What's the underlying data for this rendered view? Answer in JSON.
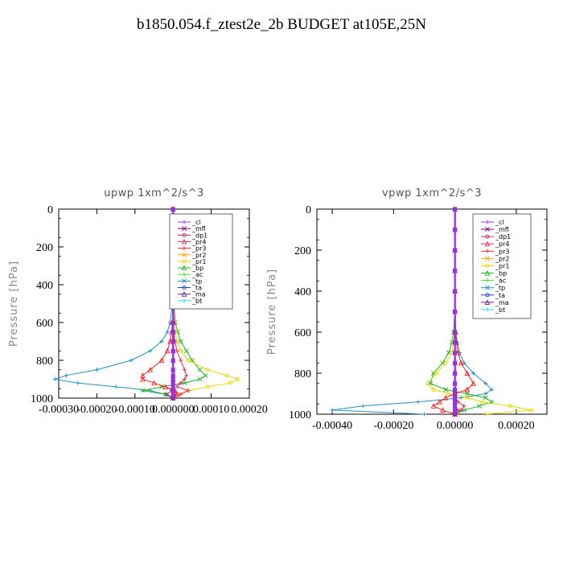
{
  "page": {
    "title": "b1850.054.f_ztest2e_2b  BUDGET at105E,25N"
  },
  "legend_entries": [
    "_cl",
    "_mfl",
    "_dp1",
    "_pr4",
    "_pr3",
    "_pr2",
    "_pr1",
    "_bp",
    "_ac",
    "_tp",
    "_ta",
    "_ma",
    "_bt"
  ],
  "series_colors": {
    "_cl": "#9b30ff",
    "_mfl": "#800080",
    "_dp1": "#b03060",
    "_pr4": "#e0305a",
    "_pr3": "#ff2020",
    "_pr2": "#ffa500",
    "_pr1": "#e8d800",
    "_bp": "#20b020",
    "_ac": "#40e040",
    "_tp": "#2090c0",
    "_ta": "#1040e0",
    "_ma": "#6a2090",
    "_bt": "#20e0e0"
  },
  "chart_data": [
    {
      "type": "line",
      "title": "upwp   1xm^2/s^3",
      "ylabel": "Pressure [hPa]",
      "xlabel": "",
      "xlim": [
        -0.0003,
        0.0002
      ],
      "ylim": [
        1000,
        0
      ],
      "x_tick_labels": [
        "-0.00030",
        "-0.00020",
        "-0.00010",
        "0.000000",
        "0.00010",
        "0.00020"
      ],
      "x_tick_values": [
        -0.0003,
        -0.0002,
        -0.0001,
        0,
        0.0001,
        0.0002
      ],
      "y_tick_values": [
        0,
        200,
        400,
        600,
        800,
        1000
      ],
      "legend": "top-right",
      "levels": [
        0,
        100,
        200,
        300,
        400,
        500,
        600,
        650,
        700,
        750,
        800,
        850,
        880,
        900,
        920,
        940,
        960,
        980,
        1000
      ],
      "series": [
        {
          "name": "_tp",
          "values": [
            0,
            0,
            0,
            0,
            0,
            -2e-06,
            -8e-06,
            -1.5e-05,
            -3e-05,
            -6e-05,
            -0.00011,
            -0.0002,
            -0.00028,
            -0.00031,
            -0.00025,
            -0.00015,
            -6e-05,
            -2e-05,
            0
          ]
        },
        {
          "name": "_bp",
          "values": [
            0,
            0,
            0,
            0,
            1e-06,
            2e-06,
            6e-06,
            1.2e-05,
            2e-05,
            3.5e-05,
            5e-05,
            7e-05,
            8.5e-05,
            7e-05,
            3e-05,
            -3e-05,
            -8e-05,
            -2e-05,
            0
          ]
        },
        {
          "name": "_pr1",
          "values": [
            0,
            0,
            0,
            0,
            0,
            1e-06,
            3e-06,
            6e-06,
            1e-05,
            2e-05,
            4e-05,
            9e-05,
            0.00014,
            0.00017,
            0.00015,
            9e-05,
            4e-05,
            1e-05,
            0
          ]
        },
        {
          "name": "_pr3",
          "values": [
            0,
            0,
            0,
            0,
            0,
            0,
            -2e-06,
            -4e-06,
            -8e-06,
            -1.5e-05,
            -3e-05,
            -6e-05,
            -8e-05,
            -8e-05,
            -5e-05,
            -2e-05,
            5e-06,
            1e-05,
            0
          ]
        },
        {
          "name": "_pr4",
          "values": [
            0,
            0,
            0,
            0,
            0,
            0,
            1e-06,
            2e-06,
            5e-06,
            1e-05,
            2e-05,
            3e-05,
            3.5e-05,
            3e-05,
            2e-05,
            1e-05,
            4e-05,
            2e-05,
            0
          ]
        },
        {
          "name": "_dp1",
          "values": [
            0,
            0,
            0,
            0,
            0,
            0,
            0,
            0,
            0,
            0,
            0,
            0,
            0,
            0,
            0,
            0,
            -5e-06,
            -1.5e-05,
            0
          ]
        },
        {
          "name": "_mfl",
          "values": [
            0,
            0,
            0,
            0,
            0,
            0,
            0,
            0,
            0,
            0,
            0,
            0,
            0,
            0,
            0,
            0,
            0,
            0,
            0
          ]
        },
        {
          "name": "_cl",
          "values": [
            0,
            0,
            0,
            0,
            0,
            0,
            0,
            0,
            0,
            0,
            0,
            0,
            0,
            0,
            0,
            0,
            0,
            0,
            0
          ]
        }
      ]
    },
    {
      "type": "line",
      "title": "vpwp   1xm^2/s^3",
      "ylabel": "Pressure [hPa]",
      "xlabel": "",
      "xlim": [
        -0.00045,
        0.0003
      ],
      "ylim": [
        1000,
        0
      ],
      "x_tick_labels": [
        "-0.00040",
        "-0.00020",
        "0.00000",
        "0.00020"
      ],
      "x_tick_values": [
        -0.0004,
        -0.0002,
        0,
        0.0002
      ],
      "y_tick_values": [
        0,
        200,
        400,
        600,
        800,
        1000
      ],
      "legend": "top-right",
      "levels": [
        0,
        100,
        200,
        300,
        400,
        500,
        600,
        650,
        700,
        750,
        800,
        850,
        880,
        900,
        920,
        940,
        960,
        980,
        1000
      ],
      "series": [
        {
          "name": "_tp",
          "values": [
            0,
            0,
            0,
            0,
            0,
            1e-06,
            3e-06,
            8e-06,
            1.5e-05,
            3e-05,
            6e-05,
            0.0001,
            0.00012,
            0.0001,
            2e-05,
            -0.00012,
            -0.0003,
            -0.0004,
            -0.0001
          ]
        },
        {
          "name": "_bp",
          "values": [
            0,
            0,
            0,
            0,
            0,
            -1e-06,
            -4e-06,
            -1e-05,
            -2e-05,
            -4e-05,
            -7e-05,
            -8e-05,
            -3e-05,
            4e-05,
            0.0001,
            0.00012,
            8e-05,
            3e-05,
            0
          ]
        },
        {
          "name": "_pr1",
          "values": [
            0,
            0,
            0,
            0,
            0,
            0,
            -2e-06,
            -5e-06,
            -1e-05,
            -3e-05,
            -6e-05,
            -9e-05,
            -7e-05,
            -2e-05,
            4e-05,
            9e-05,
            0.00018,
            0.00025,
            0.0001
          ]
        },
        {
          "name": "_pr3",
          "values": [
            0,
            0,
            0,
            0,
            0,
            0,
            2e-06,
            5e-06,
            1e-05,
            2e-05,
            4e-05,
            6e-05,
            4e-05,
            0,
            -3e-05,
            -5e-05,
            -7e-05,
            -4e-05,
            0
          ]
        },
        {
          "name": "_pr4",
          "values": [
            0,
            0,
            0,
            0,
            0,
            0,
            0,
            0,
            0,
            0,
            0,
            0,
            0,
            0,
            0,
            1e-05,
            3e-05,
            2e-05,
            0
          ]
        },
        {
          "name": "_dp1",
          "values": [
            0,
            0,
            0,
            0,
            0,
            0,
            0,
            0,
            0,
            0,
            0,
            0,
            0,
            0,
            0,
            0,
            0,
            1e-05,
            0
          ]
        },
        {
          "name": "_mfl",
          "values": [
            0,
            0,
            0,
            0,
            0,
            0,
            0,
            0,
            0,
            0,
            0,
            0,
            0,
            0,
            0,
            0,
            0,
            0,
            0
          ]
        },
        {
          "name": "_cl",
          "values": [
            0,
            0,
            0,
            0,
            0,
            0,
            0,
            0,
            0,
            0,
            0,
            0,
            0,
            0,
            0,
            0,
            0,
            0,
            0
          ]
        }
      ]
    }
  ]
}
